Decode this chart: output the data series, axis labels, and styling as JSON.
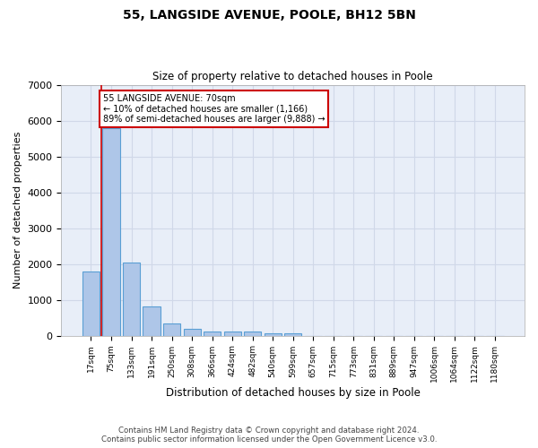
{
  "title1": "55, LANGSIDE AVENUE, POOLE, BH12 5BN",
  "title2": "Size of property relative to detached houses in Poole",
  "xlabel": "Distribution of detached houses by size in Poole",
  "ylabel": "Number of detached properties",
  "bar_labels": [
    "17sqm",
    "75sqm",
    "133sqm",
    "191sqm",
    "250sqm",
    "308sqm",
    "366sqm",
    "424sqm",
    "482sqm",
    "540sqm",
    "599sqm",
    "657sqm",
    "715sqm",
    "773sqm",
    "831sqm",
    "889sqm",
    "947sqm",
    "1006sqm",
    "1064sqm",
    "1122sqm",
    "1180sqm"
  ],
  "bar_values": [
    1800,
    5800,
    2050,
    820,
    340,
    185,
    120,
    110,
    105,
    75,
    65,
    0,
    0,
    0,
    0,
    0,
    0,
    0,
    0,
    0,
    0
  ],
  "bar_color": "#aec6e8",
  "bar_edge_color": "#5a9fd4",
  "red_line_x": 0.5,
  "annotation_title": "55 LANGSIDE AVENUE: 70sqm",
  "annotation_line1": "← 10% of detached houses are smaller (1,166)",
  "annotation_line2": "89% of semi-detached houses are larger (9,888) →",
  "annotation_box_color": "#ffffff",
  "annotation_border_color": "#cc0000",
  "ylim": [
    0,
    7000
  ],
  "yticks": [
    0,
    1000,
    2000,
    3000,
    4000,
    5000,
    6000,
    7000
  ],
  "grid_color": "#d0d8e8",
  "background_color": "#e8eef8",
  "footer1": "Contains HM Land Registry data © Crown copyright and database right 2024.",
  "footer2": "Contains public sector information licensed under the Open Government Licence v3.0."
}
